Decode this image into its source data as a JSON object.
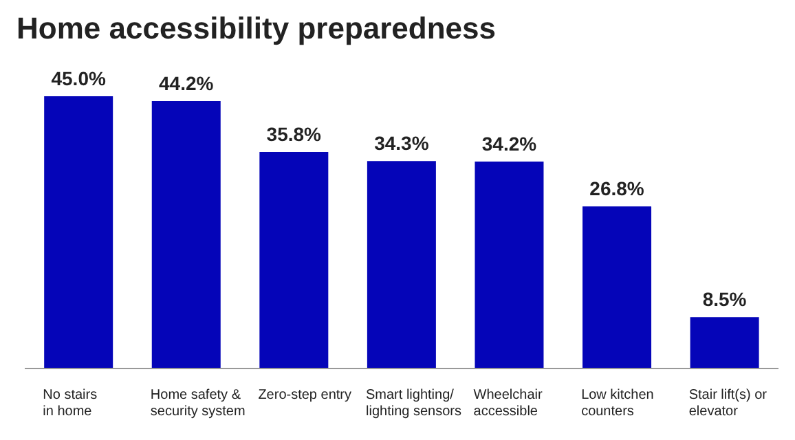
{
  "chart_data": {
    "type": "bar",
    "title": "Home accessibility preparedness",
    "categories": [
      "No stairs\nin home",
      "Home safety &\nsecurity system",
      "Zero-step entry",
      "Smart lighting/\nlighting sensors",
      "Wheelchair\naccessible",
      "Low kitchen\ncounters",
      "Stair lift(s) or\nelevator"
    ],
    "values": [
      45.0,
      44.2,
      35.8,
      34.3,
      34.2,
      26.8,
      8.5
    ],
    "value_labels": [
      "45.0%",
      "44.2%",
      "35.8%",
      "34.3%",
      "34.2%",
      "26.8%",
      "8.5%"
    ],
    "color": "#0505b8"
  }
}
